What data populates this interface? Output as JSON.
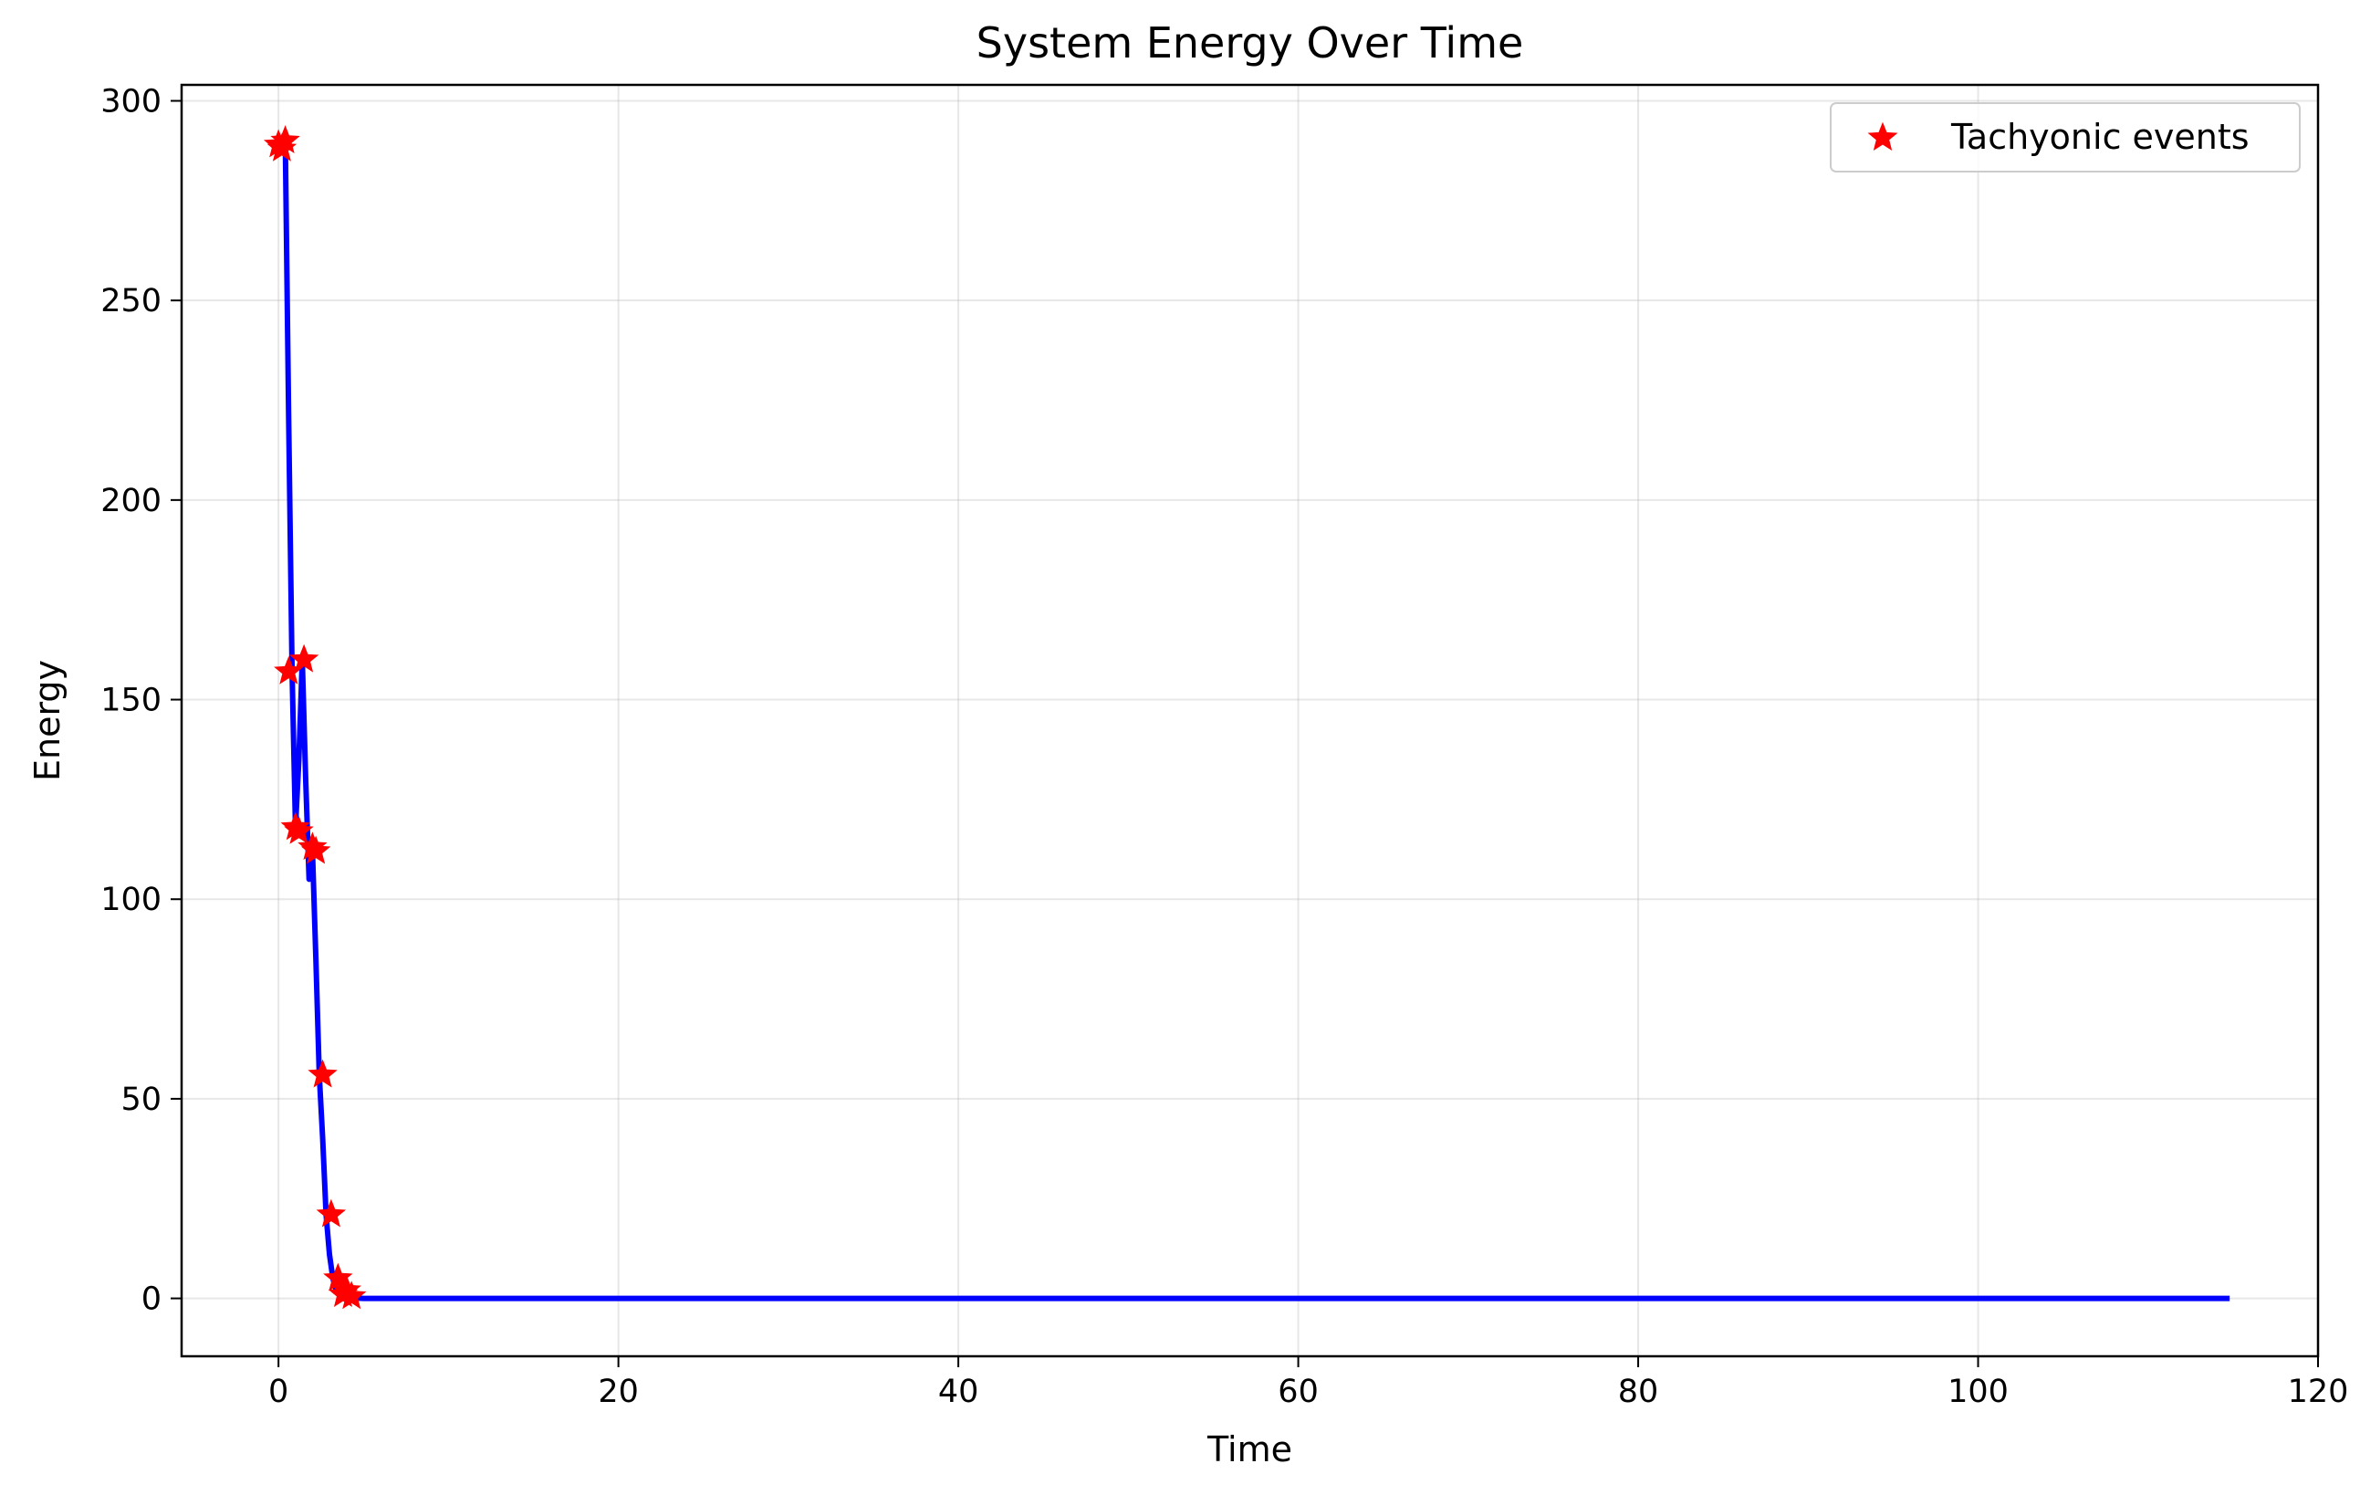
{
  "chart_data": {
    "type": "line",
    "title": "System Energy Over Time",
    "xlabel": "Time",
    "ylabel": "Energy",
    "xlim": [
      -5.7,
      120.0
    ],
    "ylim": [
      -14.5,
      304.0
    ],
    "xticks": [
      0,
      20,
      40,
      60,
      80,
      100,
      120
    ],
    "yticks": [
      0,
      50,
      100,
      150,
      200,
      250,
      300
    ],
    "grid": true,
    "legend_position": "top-right",
    "series": [
      {
        "type": "line",
        "color": "#0000ff",
        "x": [
          0.2,
          0.4,
          0.6,
          0.8,
          1.0,
          1.2,
          1.4,
          1.6,
          1.8,
          2.0,
          2.2,
          2.4,
          2.6,
          2.8,
          3.0,
          3.2,
          3.4,
          3.6,
          3.8,
          4.0,
          4.2,
          4.4,
          5.0,
          10,
          20,
          40,
          60,
          80,
          100,
          114.8
        ],
        "y": [
          289,
          290,
          220,
          157,
          118,
          135,
          160,
          130,
          105,
          112,
          85,
          56,
          40,
          21,
          11,
          5,
          2,
          1,
          0.5,
          0.3,
          0.2,
          0.1,
          0,
          0,
          0,
          0,
          0,
          0,
          0,
          0
        ]
      },
      {
        "name": "Tachyonic events",
        "type": "scatter",
        "marker": "star",
        "color": "#ff0000",
        "x": [
          0.0,
          0.2,
          0.4,
          0.6,
          1.0,
          1.2,
          1.5,
          2.0,
          2.2,
          2.6,
          3.1,
          3.5,
          3.8,
          4.0,
          4.3
        ],
        "y": [
          289,
          288,
          290,
          157,
          118,
          117,
          160,
          113,
          112,
          56,
          21,
          5,
          1,
          2,
          0.5
        ]
      }
    ]
  }
}
